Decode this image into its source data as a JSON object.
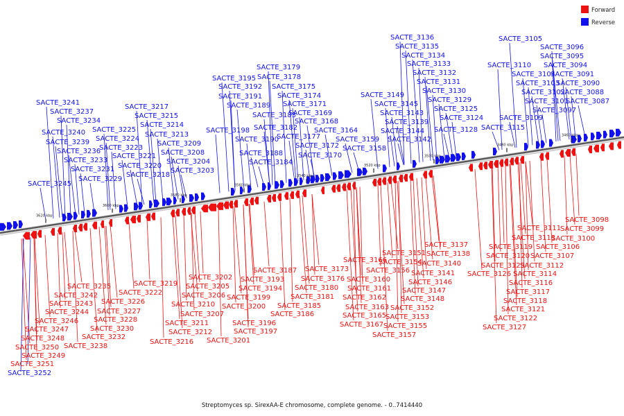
{
  "legend": {
    "forward_label": "Forward",
    "reverse_label": "Reverse",
    "forward_color": "#ee1111",
    "reverse_color": "#1111ee"
  },
  "caption": "Streptomyces sp. SirexAA-E chromosome, complete genome. - 0..7414440",
  "ticks": [
    "3620 kbp",
    "3600 kbp",
    "3580 kbp",
    "3560 kbp",
    "3540 kbp",
    "3520 kbp",
    "3500 kbp",
    "3480 kbp",
    "3460 kbp"
  ],
  "reverse_labels": [
    "SACTE_3136",
    "SACTE_3135",
    "SACTE_3134",
    "SACTE_3133",
    "SACTE_3132",
    "SACTE_3131",
    "SACTE_3130",
    "SACTE_3129",
    "SACTE_3125",
    "SACTE_3124",
    "SACTE_3128",
    "SACTE_3149",
    "SACTE_3145",
    "SACTE_3143",
    "SACTE_3139",
    "SACTE_3144",
    "SACTE_3142",
    "SACTE_3105",
    "SACTE_3096",
    "SACTE_3095",
    "SACTE_3094",
    "SACTE_3110",
    "SACTE_3104",
    "SACTE_3091",
    "SACTE_3103",
    "SACTE_3090",
    "SACTE_3102",
    "SACTE_3088",
    "SACTE_3101",
    "SACTE_3087",
    "SACTE_3097",
    "SACTE_3109",
    "SACTE_3115",
    "SACTE_3179",
    "SACTE_3178",
    "SACTE_3195",
    "SACTE_3175",
    "SACTE_3192",
    "SACTE_3174",
    "SACTE_3191",
    "SACTE_3171",
    "SACTE_3189",
    "SACTE_3169",
    "SACTE_3183",
    "SACTE_3168",
    "SACTE_3198",
    "SACTE_3182",
    "SACTE_3164",
    "SACTE_3190",
    "SACTE_3177",
    "SACTE_3159",
    "SACTE_3172",
    "SACTE_3158",
    "SACTE_3188",
    "SACTE_3170",
    "SACTE_3184",
    "SACTE_3241",
    "SACTE_3237",
    "SACTE_3217",
    "SACTE_3215",
    "SACTE_3234",
    "SACTE_3214",
    "SACTE_3240",
    "SACTE_3225",
    "SACTE_3213",
    "SACTE_3239",
    "SACTE_3224",
    "SACTE_3209",
    "SACTE_3236",
    "SACTE_3223",
    "SACTE_3221",
    "SACTE_3208",
    "SACTE_3233",
    "SACTE_3204",
    "SACTE_3220",
    "SACTE_3231",
    "SACTE_3203",
    "SACTE_3218",
    "SACTE_3229",
    "SACTE_3245",
    "SACTE_3252"
  ],
  "forward_labels": [
    "SACTE_3098",
    "SACTE_3099",
    "SACTE_3111",
    "SACTE_3100",
    "SACTE_3113",
    "SACTE_3137",
    "SACTE_3119",
    "SACTE_3106",
    "SACTE_3138",
    "SACTE_3120",
    "SACTE_3107",
    "SACTE_3151",
    "SACTE_3123",
    "SACTE_3112",
    "SACTE_3140",
    "SACTE_3166",
    "SACTE_3154",
    "SACTE_3126",
    "SACTE_3114",
    "SACTE_3187",
    "SACTE_3173",
    "SACTE_3156",
    "SACTE_3141",
    "SACTE_3116",
    "SACTE_3176",
    "SACTE_3160",
    "SACTE_3146",
    "SACTE_3117",
    "SACTE_3193",
    "SACTE_3180",
    "SACTE_3161",
    "SACTE_3147",
    "SACTE_3118",
    "SACTE_3202",
    "SACTE_3194",
    "SACTE_3181",
    "SACTE_3162",
    "SACTE_3148",
    "SACTE_3121",
    "SACTE_3219",
    "SACTE_3205",
    "SACTE_3199",
    "SACTE_3185",
    "SACTE_3163",
    "SACTE_3152",
    "SACTE_3122",
    "SACTE_3222",
    "SACTE_3206",
    "SACTE_3200",
    "SACTE_3186",
    "SACTE_3165",
    "SACTE_3153",
    "SACTE_3127",
    "SACTE_3235",
    "SACTE_3210",
    "SACTE_3196",
    "SACTE_3167",
    "SACTE_3155",
    "SACTE_3242",
    "SACTE_3226",
    "SACTE_3207",
    "SACTE_3197",
    "SACTE_3157",
    "SACTE_3243",
    "SACTE_3227",
    "SACTE_3211",
    "SACTE_3244",
    "SACTE_3228",
    "SACTE_3212",
    "SACTE_3201",
    "SACTE_3246",
    "SACTE_3230",
    "SACTE_3216",
    "SACTE_3247",
    "SACTE_3232",
    "SACTE_3248",
    "SACTE_3238",
    "SACTE_3250",
    "SACTE_3249",
    "SACTE_3251"
  ]
}
